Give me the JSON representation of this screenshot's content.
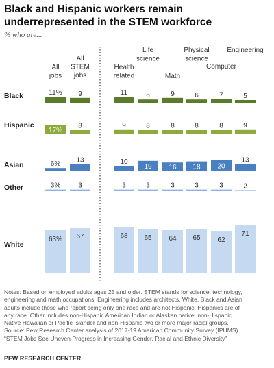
{
  "title": "Black and Hispanic workers remain underrepresented in the STEM workforce",
  "subtitle": "% who are...",
  "chart_data": {
    "type": "bar",
    "title": "Black and Hispanic workers remain underrepresented in the STEM workforce",
    "subtitle": "% who are...",
    "categories": [
      "All jobs",
      "All STEM jobs",
      "Health related",
      "Life science",
      "Math",
      "Physical science",
      "Computer",
      "Engineering"
    ],
    "category_groups": [
      {
        "categories": [
          "All jobs",
          "All STEM jobs"
        ]
      },
      {
        "categories": [
          "Health related",
          "Life science",
          "Math",
          "Physical science",
          "Computer",
          "Engineering"
        ]
      }
    ],
    "series": [
      {
        "name": "Black",
        "values": [
          11,
          9,
          11,
          6,
          9,
          6,
          7,
          5
        ],
        "labels": [
          "11%",
          "9",
          "11",
          "6",
          "9",
          "6",
          "7",
          "5"
        ],
        "color": "#5b7a2a"
      },
      {
        "name": "Hispanic",
        "values": [
          17,
          8,
          9,
          8,
          8,
          8,
          8,
          9
        ],
        "labels": [
          "17%",
          "8",
          "9",
          "8",
          "8",
          "8",
          "8",
          "9"
        ],
        "color": "#8faa3c"
      },
      {
        "name": "Asian",
        "values": [
          6,
          13,
          10,
          19,
          16,
          18,
          20,
          13
        ],
        "labels": [
          "6%",
          "13",
          "10",
          "19",
          "16",
          "18",
          "20",
          "13"
        ],
        "color": "#4a7fc1"
      },
      {
        "name": "Other",
        "values": [
          3,
          3,
          3,
          3,
          3,
          3,
          3,
          2
        ],
        "labels": [
          "3%",
          "3",
          "3",
          "3",
          "3",
          "3",
          "3",
          "2"
        ],
        "color": "#8db3e2"
      },
      {
        "name": "White",
        "values": [
          63,
          67,
          68,
          65,
          64,
          65,
          62,
          71
        ],
        "labels": [
          "63%",
          "67",
          "68",
          "65",
          "64",
          "65",
          "62",
          "71"
        ],
        "color": "#c5d9f0"
      }
    ],
    "gridlines": false,
    "legend": "none"
  },
  "notes": [
    "Notes: Based on employed adults ages 25 and older. STEM stands for science, technology,",
    "engineering and math occupations. Engineering includes architects. White, Black and Asian",
    "adults include those who report being only one race and are not Hispanic. Hispanics are of",
    "any race. Other includes non-Hispanic American Indian or Alaskan native, non-Hispanic",
    "Native Hawaiian or Pacific Islander and non-Hispanic two or more major racial groups.",
    "Source: Pew Research Center analysis of 2017-19 American Community Survey (IPUMS)",
    "“STEM Jobs See Uneven Progress in Increasing Gender, Racial and Ethnic Diversity”"
  ],
  "footer": "PEW RESEARCH CENTER"
}
